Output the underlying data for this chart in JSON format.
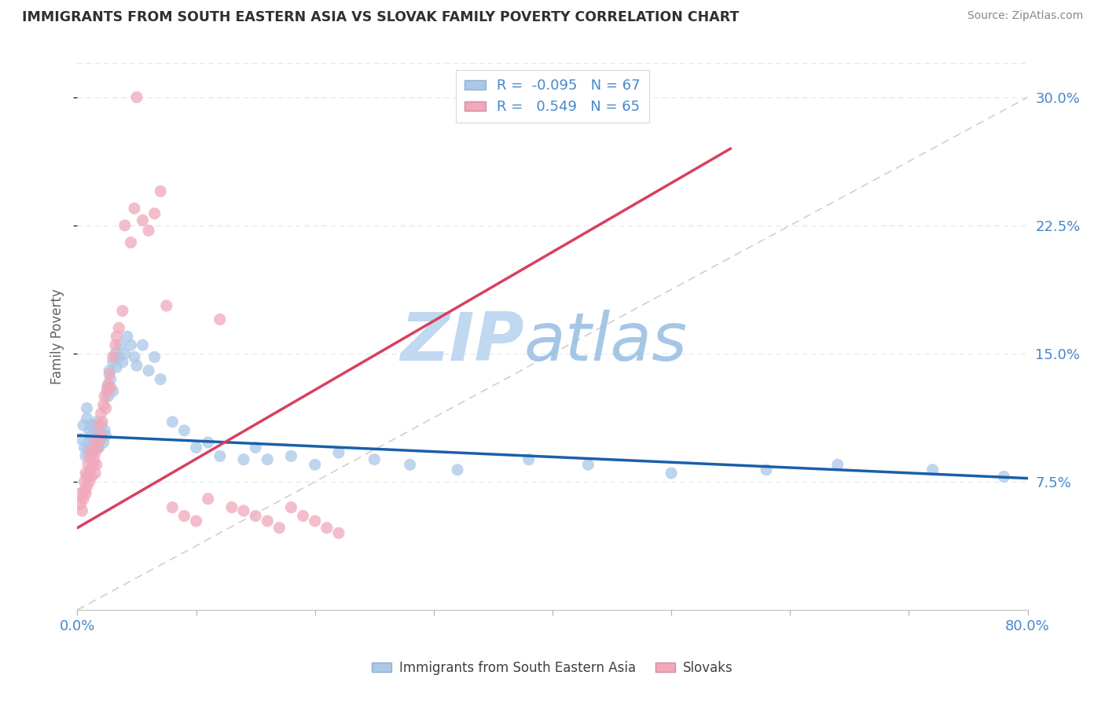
{
  "title": "IMMIGRANTS FROM SOUTH EASTERN ASIA VS SLOVAK FAMILY POVERTY CORRELATION CHART",
  "source": "Source: ZipAtlas.com",
  "ylabel": "Family Poverty",
  "ytick_labels": [
    "7.5%",
    "15.0%",
    "22.5%",
    "30.0%"
  ],
  "ytick_values": [
    0.075,
    0.15,
    0.225,
    0.3
  ],
  "xtick_values": [
    0.0,
    0.1,
    0.2,
    0.3,
    0.4,
    0.5,
    0.6,
    0.7,
    0.8
  ],
  "xtick_labels": [
    "0.0%",
    "",
    "",
    "",
    "",
    "",
    "",
    "",
    "80.0%"
  ],
  "xlim": [
    0.0,
    0.8
  ],
  "ylim": [
    0.0,
    0.32
  ],
  "blue_R": -0.095,
  "blue_N": 67,
  "pink_R": 0.549,
  "pink_N": 65,
  "blue_color": "#aac8e8",
  "pink_color": "#f0a8ba",
  "blue_line_color": "#1a5faa",
  "pink_line_color": "#d84060",
  "ref_line_color": "#d0d0d0",
  "watermark_zip_color": "#c0d8f0",
  "watermark_atlas_color": "#90b8e0",
  "legend_label_blue": "Immigrants from South Eastern Asia",
  "legend_label_pink": "Slovaks",
  "background_color": "#ffffff",
  "grid_color": "#dde8f0",
  "title_color": "#303030",
  "axis_label_color": "#4488cc",
  "source_color": "#888888",
  "blue_line_x0": 0.0,
  "blue_line_x1": 0.8,
  "blue_line_y0": 0.102,
  "blue_line_y1": 0.077,
  "pink_line_x0": 0.0,
  "pink_line_x1": 0.55,
  "pink_line_y0": 0.048,
  "pink_line_y1": 0.27,
  "blue_scatter_x": [
    0.003,
    0.005,
    0.006,
    0.007,
    0.008,
    0.008,
    0.009,
    0.01,
    0.01,
    0.011,
    0.012,
    0.012,
    0.013,
    0.014,
    0.015,
    0.015,
    0.016,
    0.016,
    0.017,
    0.018,
    0.019,
    0.02,
    0.02,
    0.022,
    0.023,
    0.024,
    0.025,
    0.026,
    0.027,
    0.028,
    0.03,
    0.03,
    0.032,
    0.033,
    0.035,
    0.036,
    0.038,
    0.04,
    0.042,
    0.045,
    0.048,
    0.05,
    0.055,
    0.06,
    0.065,
    0.07,
    0.08,
    0.09,
    0.1,
    0.11,
    0.12,
    0.14,
    0.15,
    0.16,
    0.18,
    0.2,
    0.22,
    0.25,
    0.28,
    0.32,
    0.38,
    0.43,
    0.5,
    0.58,
    0.64,
    0.72,
    0.78
  ],
  "blue_scatter_y": [
    0.1,
    0.108,
    0.095,
    0.09,
    0.112,
    0.118,
    0.095,
    0.105,
    0.098,
    0.108,
    0.095,
    0.102,
    0.1,
    0.095,
    0.108,
    0.102,
    0.095,
    0.11,
    0.1,
    0.095,
    0.105,
    0.1,
    0.108,
    0.098,
    0.105,
    0.102,
    0.13,
    0.125,
    0.14,
    0.135,
    0.128,
    0.145,
    0.15,
    0.142,
    0.148,
    0.155,
    0.145,
    0.15,
    0.16,
    0.155,
    0.148,
    0.143,
    0.155,
    0.14,
    0.148,
    0.135,
    0.11,
    0.105,
    0.095,
    0.098,
    0.09,
    0.088,
    0.095,
    0.088,
    0.09,
    0.085,
    0.092,
    0.088,
    0.085,
    0.082,
    0.088,
    0.085,
    0.08,
    0.082,
    0.085,
    0.082,
    0.078
  ],
  "pink_scatter_x": [
    0.002,
    0.003,
    0.004,
    0.005,
    0.006,
    0.006,
    0.007,
    0.007,
    0.008,
    0.008,
    0.009,
    0.01,
    0.01,
    0.011,
    0.012,
    0.012,
    0.013,
    0.013,
    0.014,
    0.015,
    0.015,
    0.016,
    0.016,
    0.017,
    0.018,
    0.019,
    0.02,
    0.02,
    0.021,
    0.022,
    0.023,
    0.024,
    0.025,
    0.026,
    0.027,
    0.028,
    0.03,
    0.032,
    0.033,
    0.035,
    0.038,
    0.04,
    0.045,
    0.048,
    0.05,
    0.055,
    0.06,
    0.065,
    0.07,
    0.075,
    0.08,
    0.09,
    0.1,
    0.11,
    0.12,
    0.13,
    0.14,
    0.15,
    0.16,
    0.17,
    0.18,
    0.19,
    0.2,
    0.21,
    0.22
  ],
  "pink_scatter_y": [
    0.068,
    0.062,
    0.058,
    0.065,
    0.07,
    0.075,
    0.068,
    0.08,
    0.072,
    0.078,
    0.085,
    0.075,
    0.09,
    0.082,
    0.078,
    0.092,
    0.085,
    0.095,
    0.088,
    0.08,
    0.092,
    0.085,
    0.1,
    0.095,
    0.108,
    0.1,
    0.115,
    0.102,
    0.11,
    0.12,
    0.125,
    0.118,
    0.128,
    0.132,
    0.138,
    0.13,
    0.148,
    0.155,
    0.16,
    0.165,
    0.175,
    0.225,
    0.215,
    0.235,
    0.3,
    0.228,
    0.222,
    0.232,
    0.245,
    0.178,
    0.06,
    0.055,
    0.052,
    0.065,
    0.17,
    0.06,
    0.058,
    0.055,
    0.052,
    0.048,
    0.06,
    0.055,
    0.052,
    0.048,
    0.045
  ]
}
